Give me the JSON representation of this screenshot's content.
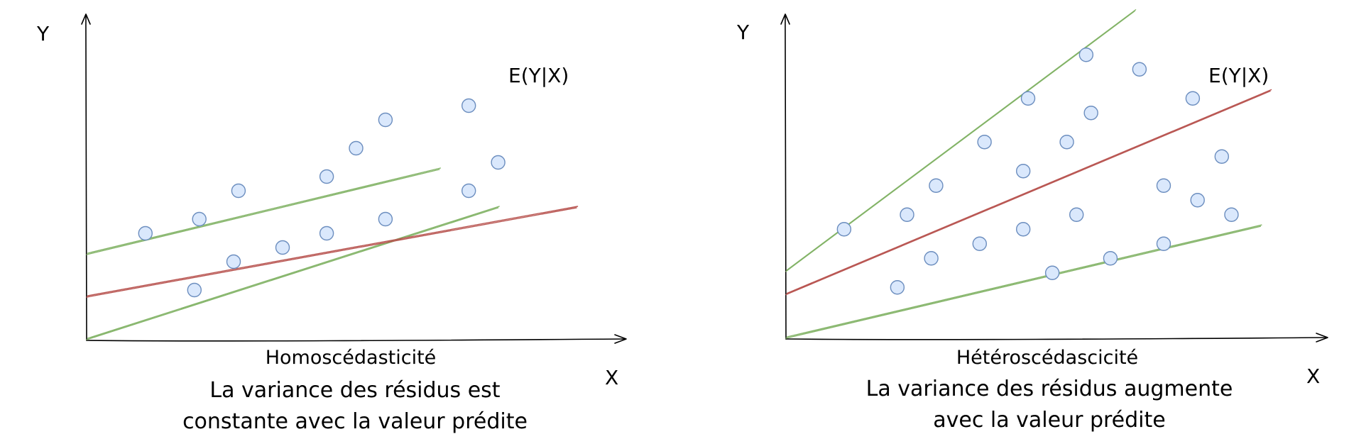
{
  "colors": {
    "axis": "#000000",
    "mean_line": "#b85450",
    "bound_line": "#82b366",
    "point_fill": "#dae8fc",
    "point_stroke": "#6c8ebf"
  },
  "panels": [
    {
      "title": "Homoscédasticité",
      "description_line1": "La variance des résidus est",
      "description_line2": "constante avec la valeur prédite",
      "y_axis_label": "Y",
      "x_axis_label": "X",
      "mean_line_label": "E(Y|X)",
      "lines": {
        "mean": {
          "x0": 0,
          "y0": 3,
          "x1": 1,
          "y1": 9.3
        },
        "upper": {
          "x0": 0,
          "y0": 6,
          "x1": 0.72,
          "y1": 12
        },
        "lower": {
          "x0": 0,
          "y0": 0,
          "x1": 0.84,
          "y1": 9.3
        }
      },
      "points": [
        {
          "x": 0.12,
          "y": 7.5
        },
        {
          "x": 0.23,
          "y": 8.5
        },
        {
          "x": 0.31,
          "y": 10.5
        },
        {
          "x": 0.22,
          "y": 3.5
        },
        {
          "x": 0.3,
          "y": 5.5
        },
        {
          "x": 0.4,
          "y": 6.5
        },
        {
          "x": 0.49,
          "y": 11.5
        },
        {
          "x": 0.49,
          "y": 7.5
        },
        {
          "x": 0.55,
          "y": 13.5
        },
        {
          "x": 0.61,
          "y": 15.5
        },
        {
          "x": 0.61,
          "y": 8.5
        },
        {
          "x": 0.78,
          "y": 16.5
        },
        {
          "x": 0.78,
          "y": 10.5
        },
        {
          "x": 0.84,
          "y": 12.5
        }
      ]
    },
    {
      "title": "Hétéroscédascicité",
      "description_line1": "La variance des résidus augmente",
      "description_line2": "avec la valeur prédite",
      "y_axis_label": "Y",
      "x_axis_label": "X",
      "mean_line_label": "E(Y|X)",
      "lines": {
        "mean": {
          "x0": 0,
          "y0": 3,
          "x1": 1,
          "y1": 17
        },
        "upper": {
          "x0": 0,
          "y0": 4.6,
          "x1": 0.72,
          "y1": 22.5
        },
        "lower": {
          "x0": 0,
          "y0": 0,
          "x1": 0.98,
          "y1": 7.7
        }
      },
      "points": [
        {
          "x": 0.12,
          "y": 7.5
        },
        {
          "x": 0.23,
          "y": 3.5
        },
        {
          "x": 0.25,
          "y": 8.5
        },
        {
          "x": 0.3,
          "y": 5.5
        },
        {
          "x": 0.31,
          "y": 10.5
        },
        {
          "x": 0.41,
          "y": 13.5
        },
        {
          "x": 0.4,
          "y": 6.5
        },
        {
          "x": 0.49,
          "y": 7.5
        },
        {
          "x": 0.49,
          "y": 11.5
        },
        {
          "x": 0.5,
          "y": 16.5
        },
        {
          "x": 0.55,
          "y": 4.5
        },
        {
          "x": 0.58,
          "y": 13.5
        },
        {
          "x": 0.6,
          "y": 8.5
        },
        {
          "x": 0.62,
          "y": 19.5
        },
        {
          "x": 0.63,
          "y": 15.5
        },
        {
          "x": 0.67,
          "y": 5.5
        },
        {
          "x": 0.73,
          "y": 18.5
        },
        {
          "x": 0.78,
          "y": 6.5
        },
        {
          "x": 0.78,
          "y": 10.5
        },
        {
          "x": 0.84,
          "y": 16.5
        },
        {
          "x": 0.85,
          "y": 9.5
        },
        {
          "x": 0.9,
          "y": 12.5
        },
        {
          "x": 0.92,
          "y": 8.5
        }
      ]
    }
  ]
}
